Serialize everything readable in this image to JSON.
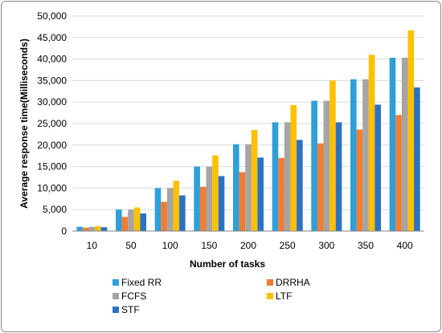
{
  "chart_data": {
    "type": "bar",
    "xlabel": "Number of tasks",
    "ylabel": "Average response  time(Milliseconds)",
    "ylim": [
      0,
      50000
    ],
    "yticks": [
      "0",
      "5,000",
      "10,000",
      "15,000",
      "20,000",
      "25,000",
      "30,000",
      "35,000",
      "40,000",
      "45,000",
      "50,000"
    ],
    "categories": [
      "10",
      "50",
      "100",
      "150",
      "200",
      "250",
      "300",
      "350",
      "400"
    ],
    "grid": true,
    "legend_position": "bottom",
    "series": [
      {
        "name": "Fixed RR",
        "color": "#2e9fd8",
        "values": [
          1000,
          5000,
          10000,
          15000,
          20200,
          25300,
          30300,
          35300,
          40300
        ]
      },
      {
        "name": "DRRHA",
        "color": "#ef7d32",
        "values": [
          800,
          3300,
          6800,
          10300,
          13700,
          17000,
          20400,
          23600,
          27000
        ]
      },
      {
        "name": "FCFS",
        "color": "#a5a5a5",
        "values": [
          1000,
          5000,
          10000,
          15000,
          20200,
          25300,
          30300,
          35300,
          40300
        ]
      },
      {
        "name": "LTF",
        "color": "#ffc000",
        "values": [
          1100,
          5500,
          11700,
          17600,
          23500,
          29300,
          35000,
          41000,
          46700
        ]
      },
      {
        "name": "STF",
        "color": "#2b72c4",
        "values": [
          900,
          4100,
          8300,
          12800,
          17100,
          21200,
          25300,
          29400,
          33400
        ]
      }
    ]
  }
}
